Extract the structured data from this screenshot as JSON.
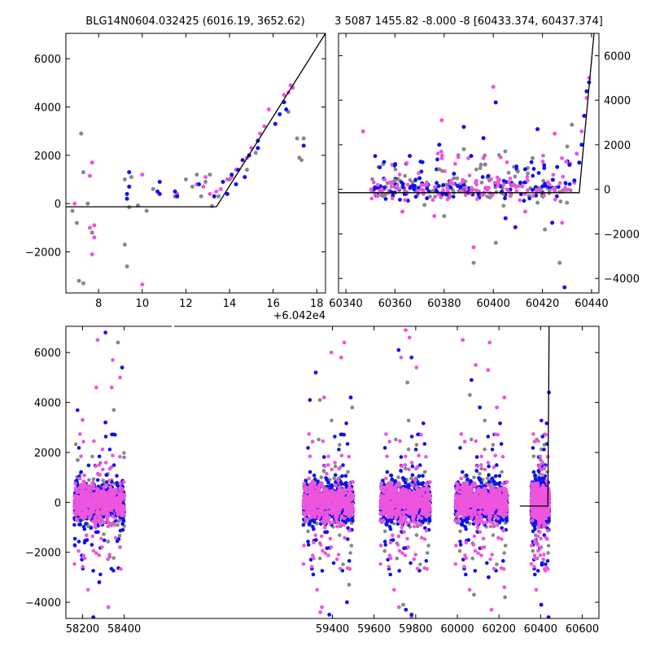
{
  "colors": {
    "gray": "#888888",
    "pink": "#ee55dd",
    "blue": "#1010ee",
    "line": "#000000"
  },
  "chart_data": [
    {
      "type": "scatter",
      "title": "BLG14N0604.032425 (6016.19, 3652.62)",
      "offset_label": "+6.042e4",
      "xlim": [
        6.5,
        18.4
      ],
      "ylim": [
        -3700,
        7050
      ],
      "x_ticks": [
        8,
        10,
        12,
        14,
        16,
        18
      ],
      "y_ticks": [
        -2000,
        0,
        2000,
        4000,
        6000
      ],
      "model_line": [
        [
          6.5,
          -130
        ],
        [
          13.4,
          -130
        ],
        [
          18.4,
          7050
        ]
      ],
      "series": [
        {
          "color": "gray",
          "points": [
            [
              6.8,
              -300
            ],
            [
              7.0,
              -800
            ],
            [
              7.2,
              2900
            ],
            [
              7.3,
              1300
            ],
            [
              7.1,
              -3200
            ],
            [
              7.3,
              -3300
            ],
            [
              7.5,
              0
            ],
            [
              7.7,
              -1200
            ],
            [
              9.2,
              -1700
            ],
            [
              9.3,
              -2600
            ],
            [
              9.4,
              -150
            ],
            [
              9.2,
              1000
            ],
            [
              9.5,
              1100
            ],
            [
              9.8,
              -80
            ],
            [
              10.2,
              -300
            ],
            [
              10.5,
              600
            ],
            [
              11.5,
              300
            ],
            [
              12.0,
              1000
            ],
            [
              12.3,
              700
            ],
            [
              12.5,
              1200
            ],
            [
              12.9,
              900
            ],
            [
              13.2,
              -100
            ],
            [
              13.5,
              300
            ],
            [
              14.0,
              1000
            ],
            [
              14.8,
              1400
            ],
            [
              15.2,
              2100
            ],
            [
              16.7,
              3800
            ],
            [
              17.1,
              2700
            ],
            [
              17.2,
              1900
            ],
            [
              17.3,
              1800
            ],
            [
              17.4,
              2700
            ],
            [
              12.7,
              300
            ],
            [
              13.1,
              1200
            ]
          ]
        },
        {
          "color": "pink",
          "points": [
            [
              6.9,
              0
            ],
            [
              7.6,
              -1000
            ],
            [
              7.8,
              -900
            ],
            [
              7.8,
              -1400
            ],
            [
              7.7,
              -2100
            ],
            [
              7.7,
              1700
            ],
            [
              7.6,
              1150
            ],
            [
              10.0,
              -3350
            ],
            [
              10.0,
              1200
            ],
            [
              11.6,
              400
            ],
            [
              12.5,
              800
            ],
            [
              12.8,
              700
            ],
            [
              13.1,
              400
            ],
            [
              13.4,
              500
            ],
            [
              13.9,
              1000
            ],
            [
              14.3,
              1400
            ],
            [
              14.8,
              1900
            ],
            [
              15.0,
              2300
            ],
            [
              15.4,
              2900
            ],
            [
              15.6,
              3200
            ],
            [
              15.8,
              3900
            ],
            [
              16.5,
              4500
            ],
            [
              16.8,
              4900
            ],
            [
              16.9,
              4800
            ],
            [
              16.7,
              4600
            ],
            [
              14.1,
              1100
            ],
            [
              13.6,
              600
            ],
            [
              12.9,
              1100
            ]
          ]
        },
        {
          "color": "blue",
          "points": [
            [
              9.4,
              1300
            ],
            [
              9.4,
              700
            ],
            [
              9.3,
              400
            ],
            [
              9.3,
              200
            ],
            [
              10.7,
              500
            ],
            [
              10.8,
              900
            ],
            [
              10.8,
              400
            ],
            [
              11.5,
              500
            ],
            [
              11.6,
              300
            ],
            [
              12.6,
              800
            ],
            [
              13.3,
              300
            ],
            [
              13.7,
              900
            ],
            [
              13.9,
              400
            ],
            [
              14.1,
              1200
            ],
            [
              14.3,
              800
            ],
            [
              14.6,
              1800
            ],
            [
              14.9,
              2000
            ],
            [
              15.3,
              2600
            ],
            [
              15.3,
              2300
            ],
            [
              16.1,
              3300
            ],
            [
              16.3,
              3700
            ],
            [
              16.5,
              4200
            ],
            [
              16.6,
              3900
            ],
            [
              17.4,
              2400
            ],
            [
              14.4,
              1400
            ],
            [
              14.7,
              1100
            ]
          ]
        }
      ]
    },
    {
      "type": "scatter",
      "title": "3 5087 1455.82 -8.000 -8 [60433.374, 60437.374]",
      "xlim": [
        60337,
        60443
      ],
      "ylim": [
        -4650,
        7000
      ],
      "x_ticks": [
        60340,
        60360,
        60380,
        60400,
        60420,
        60440
      ],
      "y_ticks": [
        -4000,
        -2000,
        0,
        2000,
        4000,
        6000
      ],
      "model_line": [
        [
          60337,
          -150
        ],
        [
          60435,
          -150
        ],
        [
          60441,
          7000
        ]
      ],
      "series": [
        {
          "color": "gray",
          "points": [
            [
              60355,
              -300
            ],
            [
              60372,
              -700
            ],
            [
              60378,
              900
            ],
            [
              60380,
              -1200
            ],
            [
              60388,
              1800
            ],
            [
              60392,
              -3300
            ],
            [
              60395,
              1100
            ],
            [
              60401,
              -2400
            ],
            [
              60404,
              -200
            ],
            [
              60410,
              800
            ],
            [
              60416,
              1400
            ],
            [
              60418,
              -600
            ],
            [
              60421,
              -1800
            ],
            [
              60427,
              -3300
            ],
            [
              60430,
              -600
            ],
            [
              60432,
              2900
            ],
            [
              60360,
              400
            ],
            [
              60384,
              500
            ]
          ]
        },
        {
          "color": "pink",
          "points": [
            [
              60347,
              2600
            ],
            [
              60352,
              -200
            ],
            [
              60363,
              -1000
            ],
            [
              60376,
              -1200
            ],
            [
              60379,
              3100
            ],
            [
              60392,
              -2600
            ],
            [
              60396,
              1400
            ],
            [
              60400,
              4600
            ],
            [
              60407,
              -300
            ],
            [
              60413,
              -1000
            ],
            [
              60425,
              2500
            ],
            [
              60428,
              -1500
            ],
            [
              60433,
              300
            ],
            [
              60434,
              1600
            ],
            [
              60436,
              2600
            ],
            [
              60438,
              4100
            ],
            [
              60439,
              5000
            ],
            [
              60358,
              300
            ],
            [
              60389,
              0
            ],
            [
              60419,
              -100
            ]
          ]
        },
        {
          "color": "blue",
          "points": [
            [
              60360,
              1100
            ],
            [
              60366,
              1500
            ],
            [
              60370,
              500
            ],
            [
              60373,
              -400
            ],
            [
              60378,
              2000
            ],
            [
              60384,
              700
            ],
            [
              60388,
              2800
            ],
            [
              60391,
              1500
            ],
            [
              60396,
              2300
            ],
            [
              60398,
              600
            ],
            [
              60401,
              3900
            ],
            [
              60405,
              -1300
            ],
            [
              60409,
              -1700
            ],
            [
              60413,
              900
            ],
            [
              60418,
              2700
            ],
            [
              60424,
              -1500
            ],
            [
              60429,
              -4400
            ],
            [
              60431,
              1100
            ],
            [
              60433,
              400
            ],
            [
              60435,
              1200
            ],
            [
              60436,
              2000
            ],
            [
              60437,
              3300
            ],
            [
              60438,
              4400
            ],
            [
              60439,
              4800
            ],
            [
              60426,
              1000
            ],
            [
              60411,
              300
            ],
            [
              60394,
              -200
            ]
          ]
        }
      ]
    },
    {
      "type": "scatter",
      "xlim": [
        58120,
        60680
      ],
      "ylim": [
        -4650,
        7050
      ],
      "x_ticks": [
        58200,
        58400,
        59400,
        59600,
        59800,
        60000,
        60200,
        60400,
        60600
      ],
      "y_ticks": [
        -4000,
        -2000,
        0,
        2000,
        4000,
        6000
      ],
      "model_line": [
        [
          60300,
          -150
        ],
        [
          60435,
          -150
        ],
        [
          60441,
          7050
        ]
      ],
      "seasons": [
        [
          58160,
          58400
        ],
        [
          59260,
          59500
        ],
        [
          59630,
          59870
        ],
        [
          59990,
          60240
        ],
        [
          60355,
          60441
        ]
      ],
      "outliers": [
        {
          "color": "pink",
          "points": [
            [
              58272,
              6500
            ],
            [
              58266,
              4600
            ],
            [
              58340,
              4600
            ],
            [
              58345,
              5700
            ],
            [
              58380,
              5000
            ],
            [
              58200,
              3300
            ],
            [
              58324,
              -4200
            ],
            [
              58380,
              -1800
            ],
            [
              59342,
              -4400
            ],
            [
              59350,
              -4200
            ],
            [
              59360,
              4200
            ],
            [
              59395,
              6000
            ],
            [
              59442,
              5800
            ],
            [
              59457,
              6400
            ],
            [
              59752,
              6900
            ],
            [
              59770,
              6600
            ],
            [
              59730,
              5800
            ],
            [
              59720,
              -4200
            ],
            [
              59804,
              5400
            ],
            [
              59780,
              -4600
            ],
            [
              60026,
              6500
            ],
            [
              60088,
              5500
            ],
            [
              60148,
              5300
            ],
            [
              60155,
              6400
            ],
            [
              60164,
              -4300
            ],
            [
              60190,
              3800
            ],
            [
              60226,
              -3400
            ],
            [
              60226,
              4200
            ]
          ]
        },
        {
          "color": "blue",
          "points": [
            [
              58310,
              6800
            ],
            [
              58390,
              5400
            ],
            [
              58252,
              -4600
            ],
            [
              58280,
              -3200
            ],
            [
              58310,
              3200
            ],
            [
              59292,
              4100
            ],
            [
              59320,
              5200
            ],
            [
              59488,
              4200
            ],
            [
              59470,
              -4000
            ],
            [
              59385,
              -4500
            ],
            [
              59718,
              6100
            ],
            [
              59753,
              -4300
            ],
            [
              59780,
              5800
            ],
            [
              59780,
              -4500
            ],
            [
              60068,
              4900
            ],
            [
              60150,
              -3000
            ],
            [
              60108,
              3800
            ],
            [
              60406,
              -2500
            ],
            [
              60403,
              -4100
            ],
            [
              60438,
              -4600
            ],
            [
              60440,
              4400
            ]
          ]
        },
        {
          "color": "gray",
          "points": [
            [
              58370,
              6400
            ],
            [
              58350,
              3700
            ],
            [
              59495,
              3800
            ],
            [
              59340,
              4100
            ],
            [
              59480,
              -3300
            ],
            [
              59760,
              4800
            ],
            [
              59740,
              -4100
            ],
            [
              60080,
              -3700
            ],
            [
              60060,
              4300
            ],
            [
              60229,
              -3800
            ],
            [
              60400,
              1700
            ]
          ]
        }
      ]
    }
  ]
}
